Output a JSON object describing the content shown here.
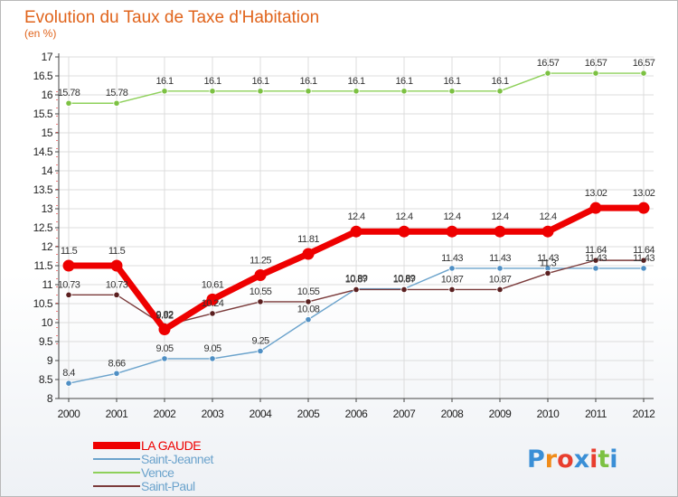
{
  "chart_data": {
    "type": "line",
    "title": "Evolution du Taux de Taxe d'Habitation",
    "subtitle": "(en %)",
    "x": [
      "2000",
      "2001",
      "2002",
      "2003",
      "2004",
      "2005",
      "2006",
      "2007",
      "2008",
      "2009",
      "2010",
      "2011",
      "2012"
    ],
    "ylim": [
      8,
      17
    ],
    "ytick_step": 0.5,
    "grid": true,
    "legend_position": "bottom-left",
    "series": [
      {
        "name": "Vence",
        "color": "#8ed05a",
        "dot": "#7cc142",
        "values": [
          15.78,
          15.78,
          16.1,
          16.1,
          16.1,
          16.1,
          16.1,
          16.1,
          16.1,
          16.1,
          16.57,
          16.57,
          16.57
        ],
        "labels": [
          "15.78",
          "15.78",
          "16.1",
          "16.1",
          "16.1",
          "16.1",
          "16.1",
          "16.1",
          "16.1",
          "16.1",
          "16.57",
          "16.57",
          "16.57"
        ]
      },
      {
        "name": "Saint-Jeannet",
        "color": "#6ba3cc",
        "dot": "#4f8fc4",
        "values": [
          8.4,
          8.66,
          9.05,
          9.05,
          9.25,
          10.08,
          10.89,
          10.89,
          11.43,
          11.43,
          11.43,
          11.43,
          11.43
        ],
        "labels": [
          "8.4",
          "8.66",
          "9.05",
          "9.05",
          "9.25",
          "10.08",
          "10.89",
          "10.89",
          "11.43",
          "11.43",
          "11.43",
          "11.43",
          "11.43"
        ]
      },
      {
        "name": "Saint-Paul",
        "color": "#7b3b3b",
        "dot": "#5a1f1f",
        "values": [
          10.73,
          10.73,
          9.92,
          10.24,
          10.55,
          10.55,
          10.87,
          10.87,
          10.87,
          10.87,
          11.3,
          11.64,
          11.64
        ],
        "labels": [
          "10.73",
          "10.73",
          "9.92",
          "10.24",
          "10.55",
          "10.55",
          "10.87",
          "10.87",
          "10.87",
          "10.87",
          "11.3",
          "11.64",
          "11.64"
        ]
      },
      {
        "name": "LA GAUDE",
        "color": "#ee0000",
        "dot": "#ee0000",
        "values": [
          11.5,
          11.5,
          9.82,
          10.61,
          11.25,
          11.81,
          12.4,
          12.4,
          12.4,
          12.4,
          12.4,
          13.02,
          13.02
        ],
        "labels": [
          "11.5",
          "11.5",
          "9.82",
          "10.61",
          "11.25",
          "11.81",
          "12.4",
          "12.4",
          "12.4",
          "12.4",
          "12.4",
          "13.02",
          "13.02"
        ]
      }
    ],
    "legend": [
      {
        "name": "LA GAUDE",
        "color": "#ee0000",
        "text_color": "#ee0000",
        "thick": true
      },
      {
        "name": "Saint-Jeannet",
        "color": "#6ba3cc",
        "text_color": "#6ba3cc",
        "thick": false
      },
      {
        "name": "Vence",
        "color": "#8ed05a",
        "text_color": "#6ba3cc",
        "thick": false
      },
      {
        "name": "Saint-Paul",
        "color": "#7b3b3b",
        "text_color": "#6ba3cc",
        "thick": false
      }
    ]
  },
  "logo": {
    "letters": [
      "P",
      "r",
      "o",
      "x",
      "i",
      "t",
      "i"
    ],
    "colors": [
      "#3a8fd6",
      "#f08c1a",
      "#e83e2e",
      "#3a8fd6",
      "#e83e2e",
      "#7cc142",
      "#3a8fd6"
    ]
  }
}
